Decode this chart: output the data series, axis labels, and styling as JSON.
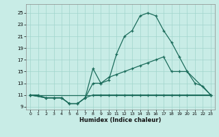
{
  "xlabel": "Humidex (Indice chaleur)",
  "bg_color": "#c8ece6",
  "grid_color": "#a0d4cc",
  "line_color": "#1a6b5a",
  "xlim": [
    -0.5,
    23.5
  ],
  "ylim": [
    8.5,
    26.5
  ],
  "xticks": [
    0,
    1,
    2,
    3,
    4,
    5,
    6,
    7,
    8,
    9,
    10,
    11,
    12,
    13,
    14,
    15,
    16,
    17,
    18,
    19,
    20,
    21,
    22,
    23
  ],
  "yticks": [
    9,
    11,
    13,
    15,
    17,
    19,
    21,
    23,
    25
  ],
  "line1_x": [
    0,
    1,
    2,
    3,
    4,
    5,
    6,
    7,
    8,
    9,
    10,
    11,
    12,
    13,
    14,
    15,
    16,
    17,
    18,
    19,
    20,
    21,
    22,
    23
  ],
  "line1_y": [
    11,
    11,
    10.5,
    10.5,
    10.5,
    9.5,
    9.5,
    10.5,
    15.5,
    13,
    13.5,
    18,
    21,
    22,
    24.5,
    25,
    24.5,
    22,
    20,
    17.5,
    15,
    13,
    12.5,
    11
  ],
  "line2_x": [
    0,
    2,
    3,
    4,
    5,
    6,
    7,
    8,
    9,
    10,
    11,
    12,
    13,
    14,
    15,
    16,
    17,
    18,
    19,
    20,
    23
  ],
  "line2_y": [
    11,
    10.5,
    10.5,
    10.5,
    9.5,
    9.5,
    10.5,
    13,
    13,
    14,
    14.5,
    15,
    15.5,
    16,
    16.5,
    17,
    17.5,
    15,
    15,
    15,
    11
  ],
  "line3_x": [
    0,
    23
  ],
  "line3_y": [
    11,
    11
  ],
  "line4_x": [
    0,
    2,
    3,
    4,
    5,
    6,
    7,
    8,
    9,
    10,
    11,
    12,
    13,
    14,
    15,
    16,
    17,
    18,
    19,
    20,
    23
  ],
  "line4_y": [
    11,
    10.5,
    10.5,
    10.5,
    9.5,
    9.5,
    10.5,
    11,
    11,
    11,
    11,
    11,
    11,
    11,
    11,
    11,
    11,
    11,
    11,
    11,
    11
  ]
}
